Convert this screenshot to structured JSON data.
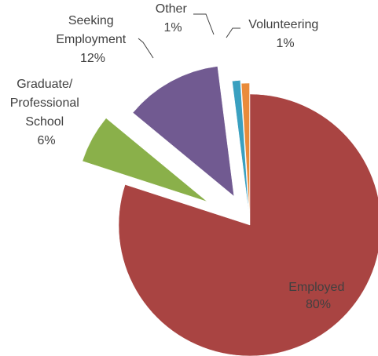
{
  "chart_data": {
    "type": "pie",
    "title": "",
    "slices": [
      {
        "name": "Employed",
        "percent_label": "80%",
        "value": 80,
        "color": "#a94442"
      },
      {
        "name": "Graduate/ Professional School",
        "name_lines": [
          "Graduate/",
          "Professional",
          "School"
        ],
        "percent_label": "6%",
        "value": 6,
        "color": "#8ab04a"
      },
      {
        "name": "Seeking Employment",
        "name_lines": [
          "Seeking",
          "Employment"
        ],
        "percent_label": "12%",
        "value": 12,
        "color": "#715a91"
      },
      {
        "name": "Other",
        "percent_label": "1%",
        "value": 1,
        "color": "#3aa0c0"
      },
      {
        "name": "Volunteering",
        "percent_label": "1%",
        "value": 1,
        "color": "#e98b3a"
      }
    ],
    "exploded": true,
    "legend": "none"
  }
}
